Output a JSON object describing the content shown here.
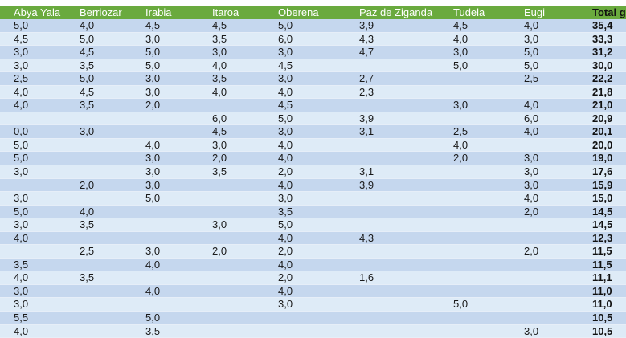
{
  "table": {
    "headers": [
      "Abya Yala",
      "Berriozar",
      "Irabia",
      "Itaroa",
      "Oberena",
      "Paz de Ziganda",
      "Tudela",
      "Eugi",
      "Total g"
    ],
    "rows": [
      [
        "5,0",
        "4,0",
        "4,5",
        "4,5",
        "5,0",
        "3,9",
        "4,5",
        "4,0",
        "35,4"
      ],
      [
        "4,5",
        "5,0",
        "3,0",
        "3,5",
        "6,0",
        "4,3",
        "4,0",
        "3,0",
        "33,3"
      ],
      [
        "3,0",
        "4,5",
        "5,0",
        "3,0",
        "3,0",
        "4,7",
        "3,0",
        "5,0",
        "31,2"
      ],
      [
        "3,0",
        "3,5",
        "5,0",
        "4,0",
        "4,5",
        "",
        "5,0",
        "5,0",
        "30,0"
      ],
      [
        "2,5",
        "5,0",
        "3,0",
        "3,5",
        "3,0",
        "2,7",
        "",
        "2,5",
        "22,2"
      ],
      [
        "4,0",
        "4,5",
        "3,0",
        "4,0",
        "4,0",
        "2,3",
        "",
        "",
        "21,8"
      ],
      [
        "4,0",
        "3,5",
        "2,0",
        "",
        "4,5",
        "",
        "3,0",
        "4,0",
        "21,0"
      ],
      [
        "",
        "",
        "",
        "6,0",
        "5,0",
        "3,9",
        "",
        "6,0",
        "20,9"
      ],
      [
        "0,0",
        "3,0",
        "",
        "4,5",
        "3,0",
        "3,1",
        "2,5",
        "4,0",
        "20,1"
      ],
      [
        "5,0",
        "",
        "4,0",
        "3,0",
        "4,0",
        "",
        "4,0",
        "",
        "20,0"
      ],
      [
        "5,0",
        "",
        "3,0",
        "2,0",
        "4,0",
        "",
        "2,0",
        "3,0",
        "19,0"
      ],
      [
        "3,0",
        "",
        "3,0",
        "3,5",
        "2,0",
        "3,1",
        "",
        "3,0",
        "17,6"
      ],
      [
        "",
        "2,0",
        "3,0",
        "",
        "4,0",
        "3,9",
        "",
        "3,0",
        "15,9"
      ],
      [
        "3,0",
        "",
        "5,0",
        "",
        "3,0",
        "",
        "",
        "4,0",
        "15,0"
      ],
      [
        "5,0",
        "4,0",
        "",
        "",
        "3,5",
        "",
        "",
        "2,0",
        "14,5"
      ],
      [
        "3,0",
        "3,5",
        "",
        "3,0",
        "5,0",
        "",
        "",
        "",
        "14,5"
      ],
      [
        "4,0",
        "",
        "",
        "",
        "4,0",
        "4,3",
        "",
        "",
        "12,3"
      ],
      [
        "",
        "2,5",
        "3,0",
        "2,0",
        "2,0",
        "",
        "",
        "2,0",
        "11,5"
      ],
      [
        "3,5",
        "",
        "4,0",
        "",
        "4,0",
        "",
        "",
        "",
        "11,5"
      ],
      [
        "4,0",
        "3,5",
        "",
        "",
        "2,0",
        "1,6",
        "",
        "",
        "11,1"
      ],
      [
        "3,0",
        "",
        "4,0",
        "",
        "4,0",
        "",
        "",
        "",
        "11,0"
      ],
      [
        "3,0",
        "",
        "",
        "",
        "3,0",
        "",
        "5,0",
        "",
        "11,0"
      ],
      [
        "5,5",
        "",
        "5,0",
        "",
        "",
        "",
        "",
        "",
        "10,5"
      ],
      [
        "4,0",
        "",
        "3,5",
        "",
        "",
        "",
        "",
        "3,0",
        "10,5"
      ]
    ]
  },
  "colors": {
    "header_bg": "#6aaa3e",
    "header_text": "#ffffff",
    "row_odd": "#c5d7ee",
    "row_even": "#deebf7"
  }
}
